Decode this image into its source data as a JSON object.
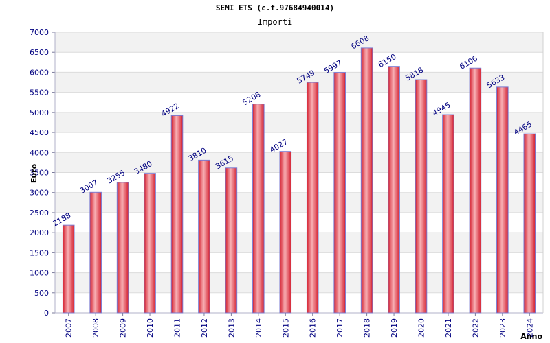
{
  "chart_title": "SEMI ETS (c.f.97684940014)",
  "chart_subtitle": "Importi",
  "chart_data": {
    "type": "bar",
    "title": "SEMI ETS (c.f.97684940014)",
    "subtitle": "Importi",
    "xlabel": "Anno",
    "ylabel": "Euro",
    "categories": [
      "2007",
      "2008",
      "2009",
      "2010",
      "2011",
      "2012",
      "2013",
      "2014",
      "2015",
      "2016",
      "2017",
      "2018",
      "2019",
      "2020",
      "2021",
      "2022",
      "2023",
      "2024"
    ],
    "values": [
      2188,
      3007,
      3255,
      3480,
      4922,
      3810,
      3615,
      5208,
      4027,
      5749,
      5997,
      6608,
      6150,
      5818,
      4945,
      6106,
      5633,
      4465
    ],
    "ylim": [
      0,
      7000
    ],
    "yticks": [
      0,
      500,
      1000,
      1500,
      2000,
      2500,
      3000,
      3500,
      4000,
      4500,
      5000,
      5500,
      6000,
      6500,
      7000
    ],
    "grid": true,
    "legend": "none",
    "colors": {
      "bar": "#e8303c",
      "bar_highlight": "#f8b0b4",
      "bar_edge": "#7a7ad0",
      "band": "#f2f2f2",
      "grid": "#dcdcdc",
      "text": "#000080"
    }
  }
}
